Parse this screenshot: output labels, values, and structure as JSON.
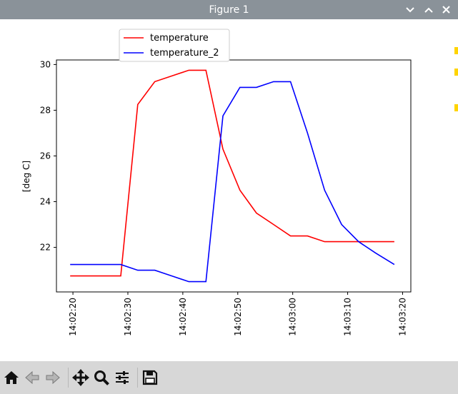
{
  "window": {
    "title": "Figure 1",
    "controls": [
      "chevron-down-icon",
      "chevron-up-icon",
      "close-icon"
    ]
  },
  "toolbar": {
    "buttons": [
      "home-icon",
      "back-arrow-icon",
      "forward-arrow-icon",
      "pan-icon",
      "zoom-icon",
      "configure-subplots-icon",
      "save-icon"
    ]
  },
  "colors": {
    "titlebar": "#8a9299",
    "toolbar": "#d7d7d7",
    "temperature": "#ff0000",
    "temperature_2": "#0000ff"
  },
  "chart_data": {
    "type": "line",
    "title": "",
    "xlabel": "",
    "ylabel": "[deg C]",
    "x": [
      "14:02:19.5",
      "14:02:22.6",
      "14:02:25.6",
      "14:02:28.7",
      "14:02:31.8",
      "14:02:34.9",
      "14:02:38.0",
      "14:02:41.1",
      "14:02:44.2",
      "14:02:47.3",
      "14:02:50.4",
      "14:02:53.4",
      "14:02:56.5",
      "14:02:59.6",
      "14:03:02.7",
      "14:03:05.8",
      "14:03:08.9",
      "14:03:12.0",
      "14:03:15.1",
      "14:03:18.5"
    ],
    "series": [
      {
        "name": "temperature",
        "color": "#ff0000",
        "values": [
          20.75,
          20.75,
          20.75,
          20.75,
          28.25,
          29.25,
          29.5,
          29.75,
          29.75,
          26.3,
          24.5,
          23.5,
          23.0,
          22.5,
          22.5,
          22.25,
          22.25,
          22.25,
          22.25,
          22.25
        ]
      },
      {
        "name": "temperature_2",
        "color": "#0000ff",
        "values": [
          21.25,
          21.25,
          21.25,
          21.25,
          21.0,
          21.0,
          20.75,
          20.5,
          20.5,
          27.75,
          29.0,
          29.0,
          29.25,
          29.25,
          27.0,
          24.5,
          23.0,
          22.25,
          21.75,
          21.25
        ]
      }
    ],
    "xticks": [
      "14:02:20",
      "14:02:30",
      "14:02:40",
      "14:02:50",
      "14:03:00",
      "14:03:10",
      "14:03:20"
    ],
    "xlim": [
      "14:02:17",
      "14:03:21.5"
    ],
    "yticks": [
      "22",
      "24",
      "26",
      "28",
      "30"
    ],
    "ylim": [
      20.05,
      30.2
    ],
    "legend_position": "upper-left",
    "grid": false
  }
}
